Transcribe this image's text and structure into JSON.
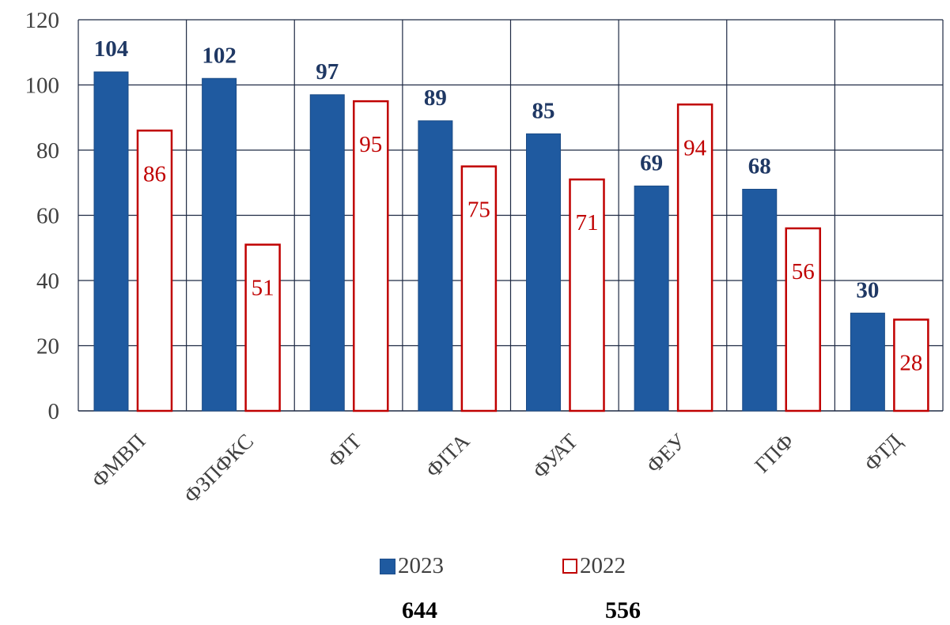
{
  "chart_data": {
    "type": "bar",
    "categories": [
      "ФМВП",
      "ФЗПФКС",
      "ФІТ",
      "ФІТА",
      "ФУАТ",
      "ФЕУ",
      "ГПФ",
      "ФТД"
    ],
    "series": [
      {
        "name": "2023",
        "values": [
          104,
          102,
          97,
          89,
          85,
          69,
          68,
          30
        ],
        "color": "#1f5aa0",
        "label_color": "#1f3864",
        "style": "filled"
      },
      {
        "name": "2022",
        "values": [
          86,
          51,
          95,
          75,
          71,
          94,
          56,
          28
        ],
        "color": "#c00000",
        "label_color": "#c00000",
        "style": "outline"
      }
    ],
    "ylim": [
      0,
      120
    ],
    "yticks": [
      0,
      20,
      40,
      60,
      80,
      100,
      120
    ],
    "grid": true,
    "legend_position": "bottom",
    "totals": [
      "644",
      "556"
    ]
  }
}
